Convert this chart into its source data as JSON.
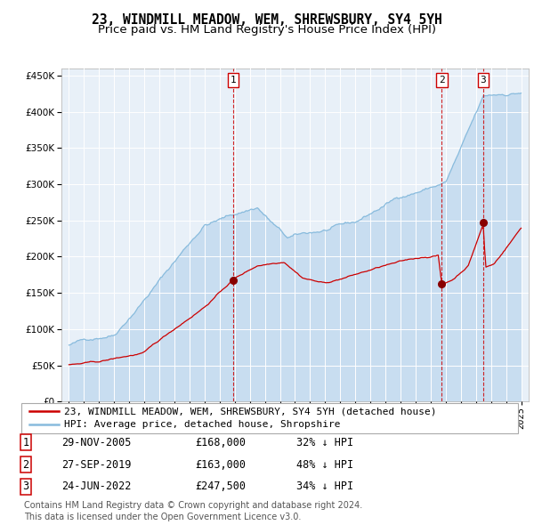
{
  "title": "23, WINDMILL MEADOW, WEM, SHREWSBURY, SY4 5YH",
  "subtitle": "Price paid vs. HM Land Registry's House Price Index (HPI)",
  "legend_items": [
    {
      "label": "23, WINDMILL MEADOW, WEM, SHREWSBURY, SY4 5YH (detached house)",
      "color": "#cc0000"
    },
    {
      "label": "HPI: Average price, detached house, Shropshire",
      "color": "#88bbdd"
    }
  ],
  "transactions": [
    {
      "num": 1,
      "date": "29-NOV-2005",
      "price": 168000,
      "price_str": "£168,000",
      "hpi_pct": "32% ↓ HPI",
      "x": 2005.91
    },
    {
      "num": 2,
      "date": "27-SEP-2019",
      "price": 163000,
      "price_str": "£163,000",
      "hpi_pct": "48% ↓ HPI",
      "x": 2019.74
    },
    {
      "num": 3,
      "date": "24-JUN-2022",
      "price": 247500,
      "price_str": "£247,500",
      "hpi_pct": "34% ↓ HPI",
      "x": 2022.48
    }
  ],
  "footer_line1": "Contains HM Land Registry data © Crown copyright and database right 2024.",
  "footer_line2": "This data is licensed under the Open Government Licence v3.0.",
  "ylim": [
    0,
    460000
  ],
  "xlim_lo": 1994.5,
  "xlim_hi": 2025.5,
  "plot_bg": "#e8f0f8",
  "fill_color": "#c8ddf0",
  "hpi_line_color": "#88bbdd",
  "price_line_color": "#cc0000",
  "marker_color": "#880000",
  "vline_color": "#cc0000",
  "grid_color": "#ffffff",
  "title_fontsize": 10.5,
  "subtitle_fontsize": 9.5,
  "tick_fontsize": 7.5,
  "legend_fontsize": 8,
  "table_fontsize": 8.5,
  "footer_fontsize": 7
}
